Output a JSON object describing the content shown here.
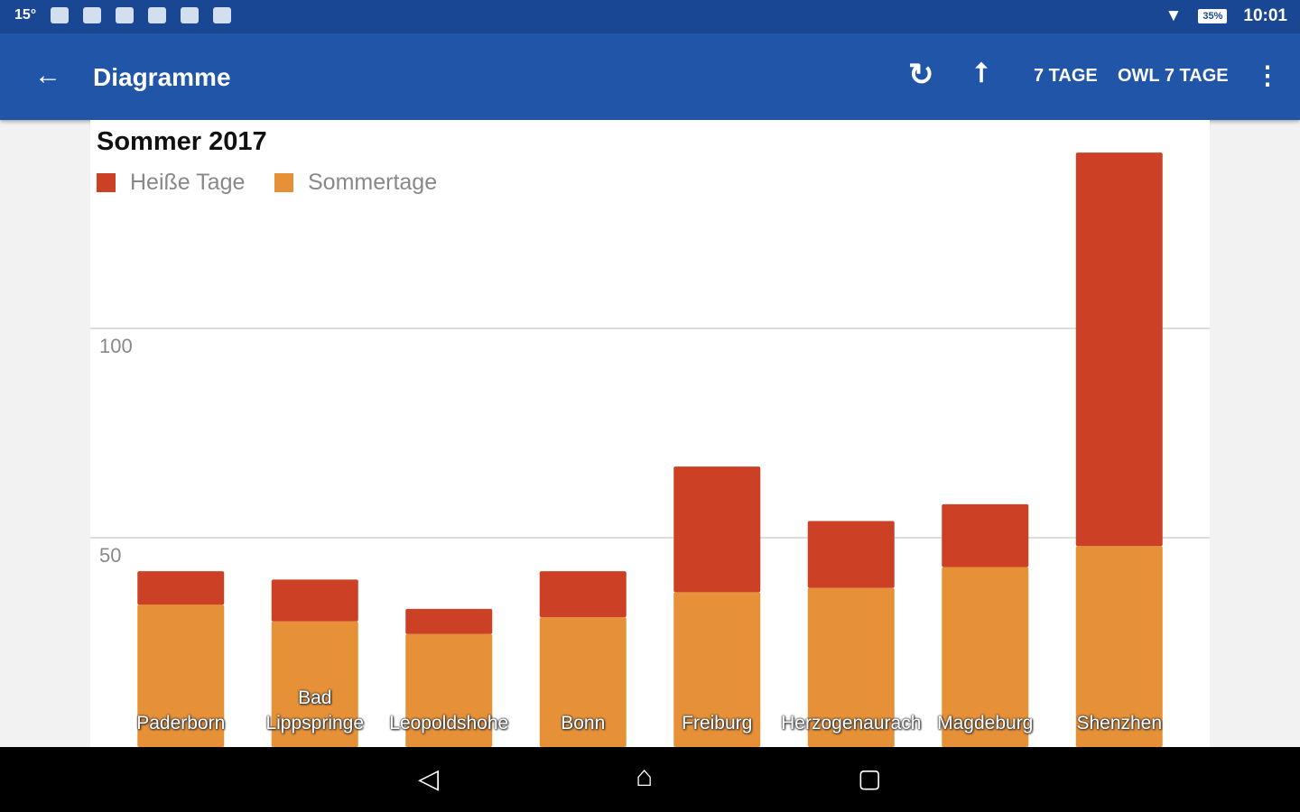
{
  "status_bar": {
    "temperature": "15°",
    "battery": "35%",
    "time": "10:01",
    "icons": [
      "weather-icon",
      "sim-icon",
      "image-icon",
      "key-icon",
      "photo-location-icon",
      "play-store-icon",
      "wifi-icon",
      "battery-icon"
    ]
  },
  "app_bar": {
    "title": "Diagramme",
    "actions": [
      "7 TAGE",
      "OWL 7 TAGE"
    ],
    "icons": [
      "back-arrow-icon",
      "refresh-icon",
      "share-icon",
      "more-vert-icon"
    ]
  },
  "colors": {
    "hot_days": "#cc4125",
    "summer_days": "#e69138",
    "appbar": "#2155a8",
    "statusbar": "#1a4793"
  },
  "chart_data": {
    "type": "bar",
    "stacked": true,
    "title": "Sommer 2017",
    "legend_position": "top-left",
    "categories": [
      "Paderborn",
      "Bad Lippspringe",
      "Leopoldshohe",
      "Bonn",
      "Freiburg",
      "Herzogenaurach",
      "Magdeburg",
      "Shenzhen"
    ],
    "series": [
      {
        "name": "Sommertage",
        "color": "#e69138",
        "values": [
          34,
          30,
          27,
          31,
          37,
          38,
          43,
          48
        ]
      },
      {
        "name": "Heiße Tage",
        "color": "#cc4125",
        "values": [
          8,
          10,
          6,
          11,
          30,
          16,
          15,
          94
        ]
      }
    ],
    "y_ticks": [
      "50",
      "100"
    ],
    "grid": true
  },
  "nav_bar": {
    "icons": [
      "back-icon",
      "home-icon",
      "recents-icon"
    ]
  }
}
